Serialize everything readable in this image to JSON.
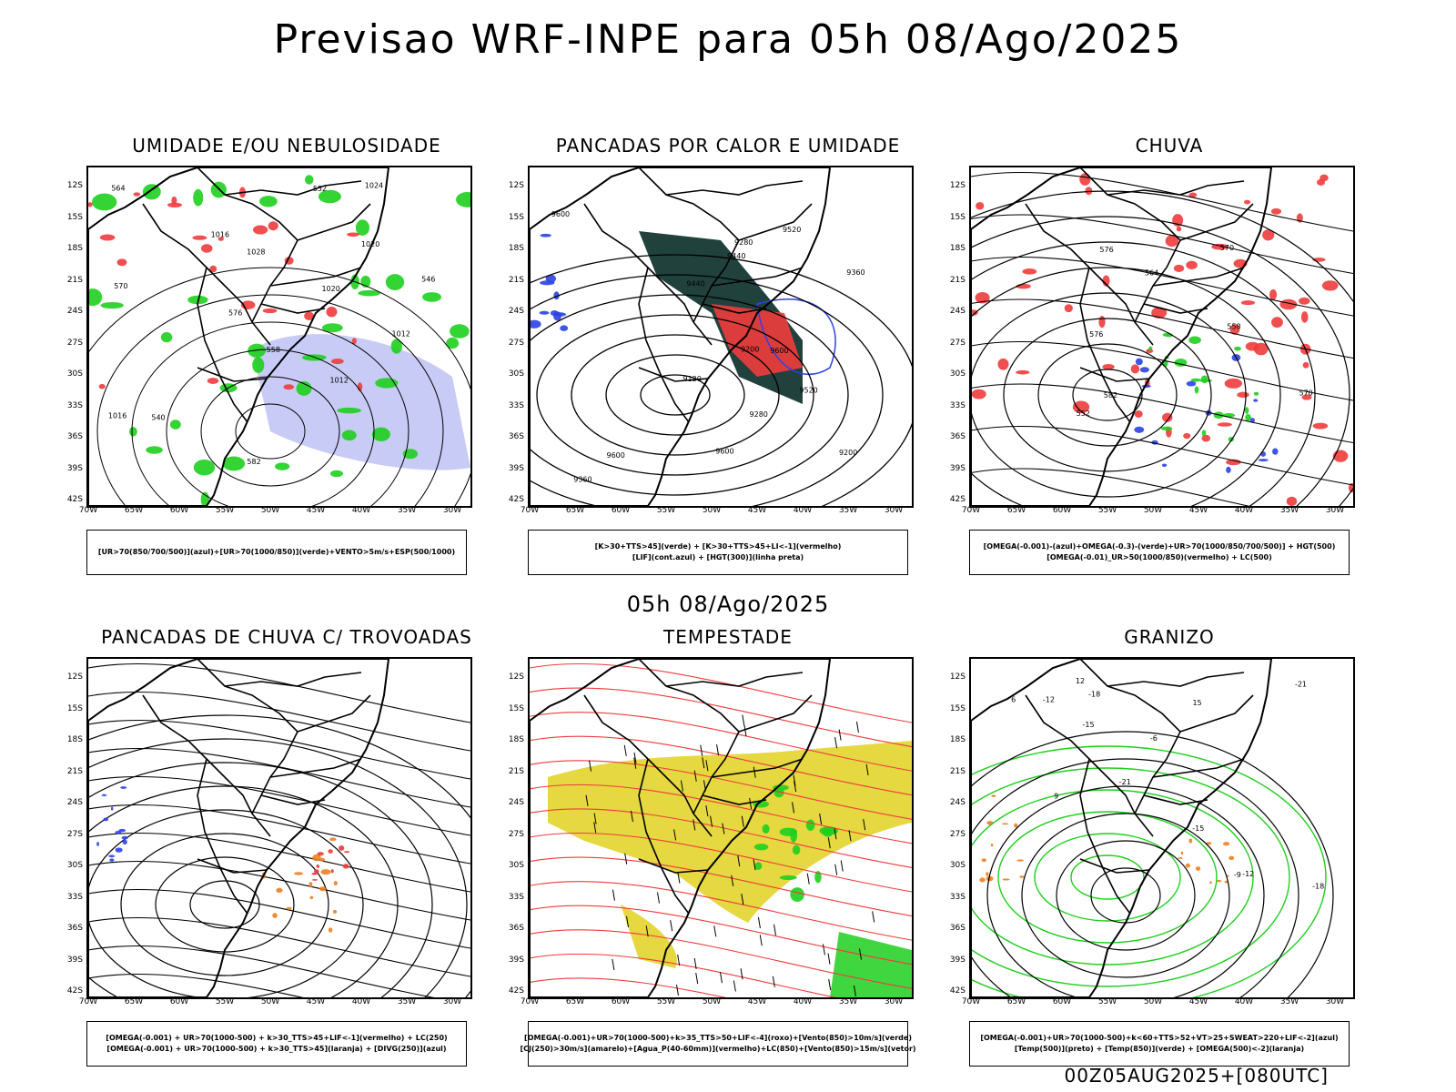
{
  "header": {
    "title": "Previsao WRF-INPE  para 05h 08/Ago/2025"
  },
  "mid_title": "05h 08/Ago/2025",
  "footer": "00Z05AUG2025+[080UTC]",
  "axes": {
    "lat_labels": [
      "12S",
      "15S",
      "18S",
      "21S",
      "24S",
      "27S",
      "30S",
      "33S",
      "36S",
      "39S",
      "42S"
    ],
    "lon_labels": [
      "70W",
      "65W",
      "60W",
      "55W",
      "50W",
      "45W",
      "40W",
      "35W",
      "30W"
    ]
  },
  "colors": {
    "blue": "#2b43e6",
    "green": "#1ecf1e",
    "red": "#f03c3c",
    "orange": "#ee7f22",
    "dark_teal": "#21413d",
    "yellow": "#e2d42c",
    "lavender": "#9aa0ee"
  },
  "panels": [
    {
      "id": "umidade",
      "title": "UMIDADE E/OU NEBULOSIDADE",
      "legend": [
        "[UR>70(850/700/500)](azul)+[UR>70(1000/850)](verde)+VENTO>5m/s+ESP(500/1000)"
      ],
      "contour_labels": [
        "1016",
        "1012",
        "1020",
        "1028",
        "1024",
        "1016",
        "1012",
        "1020",
        "540",
        "546",
        "552",
        "558",
        "564",
        "570",
        "576",
        "582"
      ]
    },
    {
      "id": "pancadas-calor",
      "title": "PANCADAS POR CALOR E UMIDADE",
      "legend": [
        "[K>30+TTS>45](verde) + [K>30+TTS>45+LI<-1](vermelho)",
        "[LIF](cont.azul) + [HGT(300)](linha preta)"
      ],
      "contour_labels": [
        "9600",
        "9600",
        "9600",
        "9600",
        "9520",
        "9520",
        "9440",
        "9440",
        "9360",
        "9280",
        "9200",
        "9120",
        "9280",
        "9360",
        "9200"
      ]
    },
    {
      "id": "chuva",
      "title": "CHUVA",
      "legend": [
        "[OMEGA(-0.001)-(azul)+OMEGA(-0.3)-(verde)+UR>70(1000/850/700/500)] + HGT(500)",
        "[OMEGA(-0.01)_UR>50(1000/850)(vermelho) + LC(500)"
      ],
      "contour_labels": [
        "582",
        "576",
        "570",
        "564",
        "558",
        "552",
        "570",
        "576"
      ]
    },
    {
      "id": "pancadas-trovoadas",
      "title": "PANCADAS DE CHUVA C/ TROVOADAS",
      "legend": [
        "[OMEGA(-0.001) + UR>70(1000-500) + k>30_TTS>45+LIF<-1](vermelho) + LC(250)",
        "[OMEGA(-0.001) + UR>70(1000-500) + k>30_TTS>45](laranja) + [DIVG(250)](azul)"
      ],
      "contour_labels": []
    },
    {
      "id": "tempestade",
      "title": "TEMPESTADE",
      "legend": [
        "[OMEGA(-0.001)+UR>70(1000-500)+k>35_TTS>50+LIF<-4](roxo)+[Vento(850)>10m/s](verde)",
        "[CJ(250)>30m/s](amarelo)+[Agua_P(40-60mm)](vermelho)+LC(850)+[Vento(850)>15m/s](vetor)"
      ],
      "contour_labels": []
    },
    {
      "id": "granizo",
      "title": "GRANIZO",
      "legend": [
        "[OMEGA(-0.001)+UR>70(1000-500)+k<60+TTS>52+VT>25+SWEAT>220+LIF<-2](azul)",
        "[Temp(500)](preto) + [Temp(850)](verde) + [OMEGA(500)<-2](laranja)"
      ],
      "contour_labels": [
        "-6",
        "-9",
        "-12",
        "-15",
        "-18",
        "-21",
        "-21",
        "-18",
        "-15",
        "-12",
        "6",
        "9",
        "12",
        "15"
      ]
    }
  ]
}
